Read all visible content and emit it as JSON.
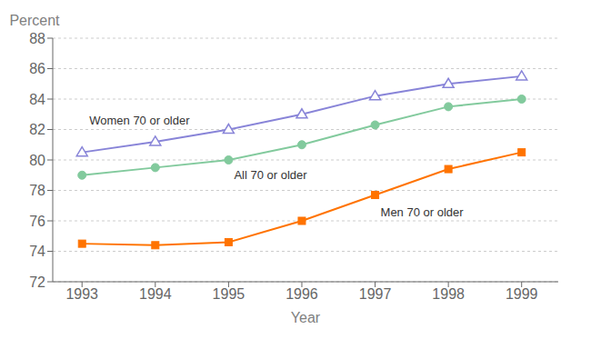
{
  "chart_data": {
    "type": "line",
    "x": [
      1993,
      1994,
      1995,
      1996,
      1997,
      1998,
      1999
    ],
    "xlim": [
      1992.6,
      1999.5
    ],
    "xticks": [
      1993,
      1994,
      1995,
      1996,
      1997,
      1998,
      1999
    ],
    "ylim": [
      72,
      88
    ],
    "yticks": [
      72,
      74,
      76,
      78,
      80,
      82,
      84,
      86,
      88
    ],
    "xlabel": "Year",
    "ylabel": "Percent",
    "grid": true,
    "series": [
      {
        "name": "Women 70 or older",
        "color": "#8884d8",
        "marker": "triangle",
        "values": [
          80.5,
          81.2,
          82.0,
          83.0,
          84.2,
          85.0,
          85.5
        ]
      },
      {
        "name": "All 70 or older",
        "color": "#82ca9d",
        "marker": "circle",
        "values": [
          79.0,
          79.5,
          80.0,
          81.0,
          82.3,
          83.5,
          84.0
        ]
      },
      {
        "name": "Men 70 or older",
        "color": "#ff7300",
        "marker": "square",
        "values": [
          74.5,
          74.4,
          74.6,
          76.0,
          77.7,
          79.4,
          80.5
        ]
      }
    ]
  }
}
